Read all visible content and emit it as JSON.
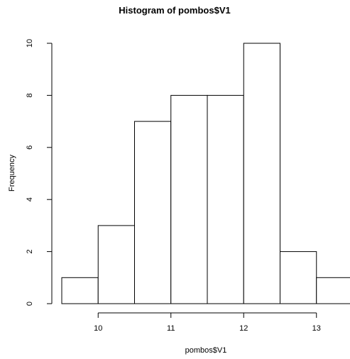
{
  "chart_data": {
    "type": "bar",
    "title": "Histogram of pombos$V1",
    "xlabel": "pombos$V1",
    "ylabel": "Frequency",
    "bin_edges": [
      9.5,
      10.0,
      10.5,
      11.0,
      11.5,
      12.0,
      12.5,
      13.0,
      13.5
    ],
    "values": [
      1,
      3,
      7,
      8,
      8,
      10,
      2,
      1
    ],
    "x_ticks": [
      10,
      11,
      12,
      13
    ],
    "y_ticks": [
      0,
      2,
      4,
      6,
      8,
      10
    ],
    "xlim": [
      9.5,
      13.5
    ],
    "ylim": [
      0,
      10
    ],
    "grid": false,
    "colors": {
      "bar_fill": "#ffffff",
      "bar_stroke": "#000000",
      "axis": "#000000"
    }
  }
}
